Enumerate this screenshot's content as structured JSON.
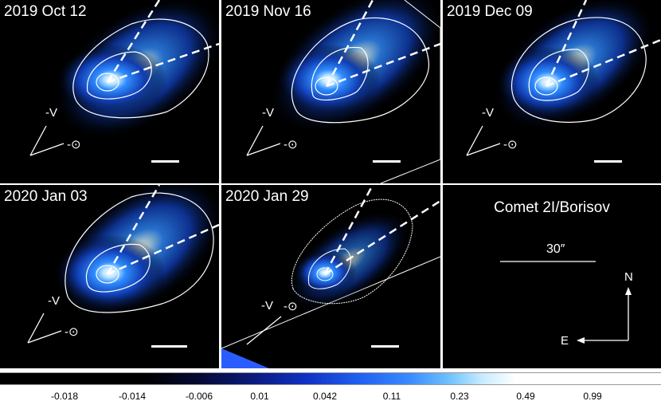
{
  "panels": [
    {
      "date": "2019 Oct 12",
      "v_label": "-V",
      "sun_label": "-⊙"
    },
    {
      "date": "2019 Nov 16",
      "v_label": "-V",
      "sun_label": "-⊙"
    },
    {
      "date": "2019 Dec 09",
      "v_label": "-V",
      "sun_label": "-⊙"
    },
    {
      "date": "2020 Jan 03",
      "v_label": "-V",
      "sun_label": "-⊙"
    },
    {
      "date": "2020 Jan 29",
      "v_label": "-V",
      "sun_label": "-⊙"
    }
  ],
  "legend": {
    "title": "Comet 2I/Borisov",
    "scale": "30″",
    "north": "N",
    "east": "E"
  },
  "colorbar": {
    "ticks": [
      "-0.018",
      "-0.014",
      "-0.006",
      "0.01",
      "0.042",
      "0.11",
      "0.23",
      "0.49",
      "0.99"
    ]
  }
}
